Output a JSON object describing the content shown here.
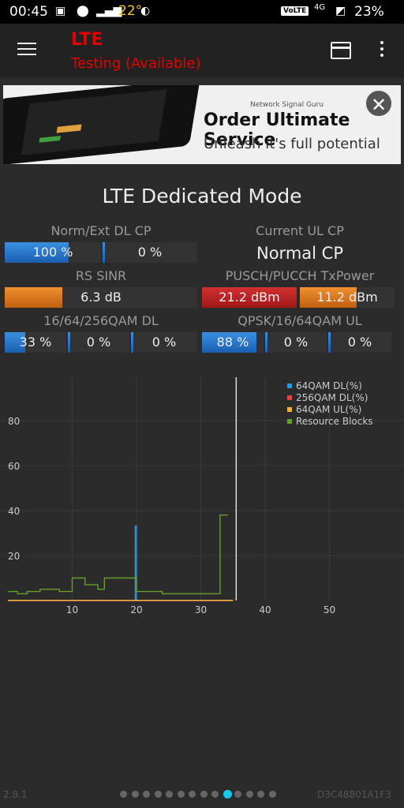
{
  "status": {
    "time": "00:45",
    "temperature": "22°",
    "volte": "VoLTE",
    "network": "4G",
    "battery": "23%"
  },
  "appbar": {
    "title": "LTE",
    "subtitle": "Testing (Available)"
  },
  "ad": {
    "brand": "Network Signal Guru",
    "line1": "Order Ultimate Service",
    "line2": "Unleash it's full potential"
  },
  "mode_title": "LTE Dedicated Mode",
  "metrics": {
    "dl_cp_label": "Norm/Ext DL CP",
    "dl_cp_norm": "100 %",
    "dl_cp_norm_fill": 0.66,
    "dl_cp_ext": "0 %",
    "ul_cp_label": "Current UL CP",
    "ul_cp_value": "Normal CP",
    "rs_sinr_label": "RS SINR",
    "rs_sinr_value": "6.3 dB",
    "rs_sinr_fill": 0.3,
    "txpower_label": "PUSCH/PUCCH TxPower",
    "pusch_value": "21.2 dBm",
    "pusch_fill": 1.0,
    "pucch_value": "11.2 dBm",
    "pucch_fill": 0.6,
    "dl_qam_label": "16/64/256QAM DL",
    "dl_16": "33 %",
    "dl_16_fill": 0.33,
    "dl_64": "0 %",
    "dl_256": "0 %",
    "ul_qam_label": "QPSK/16/64QAM UL",
    "ul_qpsk": "88 %",
    "ul_qpsk_fill": 0.88,
    "ul_16": "0 %",
    "ul_64": "0 %"
  },
  "chart_data": {
    "type": "line",
    "xlim": [
      0,
      60
    ],
    "ylim": [
      0,
      100
    ],
    "x_ticks": [
      10,
      20,
      30,
      40,
      50
    ],
    "y_ticks": [
      20,
      40,
      60,
      80
    ],
    "cursor_x": 35.5,
    "series": [
      {
        "name": "64QAM DL(%)",
        "color": "#1e9be8",
        "points": [
          [
            0,
            0
          ],
          [
            19.8,
            0
          ],
          [
            19.8,
            33
          ],
          [
            20,
            33
          ],
          [
            20,
            0
          ],
          [
            35,
            0
          ]
        ]
      },
      {
        "name": "256QAM DL(%)",
        "color": "#e84040",
        "points": [
          [
            0,
            0
          ],
          [
            35,
            0
          ]
        ]
      },
      {
        "name": "64QAM UL(%)",
        "color": "#f4b030",
        "points": [
          [
            0,
            0
          ],
          [
            35,
            0
          ]
        ]
      },
      {
        "name": "Resource Blocks",
        "color": "#66a028",
        "points": [
          [
            0,
            4
          ],
          [
            1.5,
            4
          ],
          [
            1.5,
            3
          ],
          [
            3,
            3
          ],
          [
            3,
            4
          ],
          [
            5,
            4
          ],
          [
            5,
            5
          ],
          [
            8,
            5
          ],
          [
            8,
            4
          ],
          [
            10,
            4
          ],
          [
            10,
            10
          ],
          [
            12,
            10
          ],
          [
            12,
            7
          ],
          [
            14,
            7
          ],
          [
            14,
            5
          ],
          [
            15,
            5
          ],
          [
            15,
            10
          ],
          [
            20,
            10
          ],
          [
            20,
            4
          ],
          [
            24,
            4
          ],
          [
            24,
            3
          ],
          [
            33,
            3
          ],
          [
            33,
            38
          ],
          [
            34.2,
            38
          ]
        ]
      }
    ]
  },
  "footer": {
    "version": "2.8.1",
    "device": "D3C48801A1F3",
    "page_count": 14,
    "active_page": 9
  }
}
